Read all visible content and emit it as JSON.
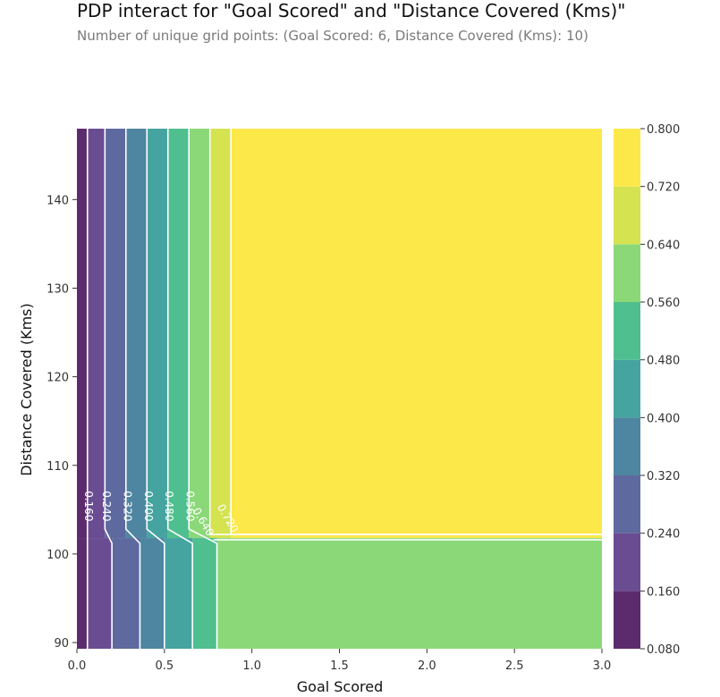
{
  "chart_data": {
    "type": "heatmap",
    "title": "PDP interact for \"Goal Scored\" and \"Distance Covered (Kms)\"",
    "subtitle": "Number of unique grid points: (Goal Scored: 6, Distance Covered (Kms): 10)",
    "xlabel": "Goal Scored",
    "ylabel": "Distance Covered (Kms)",
    "xlim": [
      0.0,
      3.0
    ],
    "ylim": [
      89.3,
      148.0
    ],
    "xticks": [
      0.0,
      0.5,
      1.0,
      1.5,
      2.0,
      2.5,
      3.0
    ],
    "xtick_labels": [
      "0.0",
      "0.5",
      "1.0",
      "1.5",
      "2.0",
      "2.5",
      "3.0"
    ],
    "yticks": [
      90,
      100,
      110,
      120,
      130,
      140
    ],
    "ytick_labels": [
      "90",
      "100",
      "110",
      "120",
      "130",
      "140"
    ],
    "y_break": 101.8,
    "upper_region": {
      "bands": [
        {
          "x_from": 0.0,
          "x_to": 0.06,
          "level": "0.080-0.160",
          "color": "#5c2b6e"
        },
        {
          "x_from": 0.06,
          "x_to": 0.16,
          "level": "0.160-0.240",
          "color": "#6a4c93"
        },
        {
          "x_from": 0.16,
          "x_to": 0.28,
          "level": "0.240-0.320",
          "color": "#5e699f"
        },
        {
          "x_from": 0.28,
          "x_to": 0.4,
          "level": "0.320-0.400",
          "color": "#4e85a0"
        },
        {
          "x_from": 0.4,
          "x_to": 0.52,
          "level": "0.400-0.480",
          "color": "#45a3a0"
        },
        {
          "x_from": 0.52,
          "x_to": 0.64,
          "level": "0.480-0.560",
          "color": "#4fbf8f"
        },
        {
          "x_from": 0.64,
          "x_to": 0.76,
          "level": "0.560-0.640",
          "color": "#8bd879"
        },
        {
          "x_from": 0.76,
          "x_to": 0.88,
          "level": "0.640-0.720",
          "color": "#d5e350"
        },
        {
          "x_from": 0.88,
          "x_to": 3.0,
          "level": "0.720-0.800",
          "color": "#fde84a"
        }
      ]
    },
    "lower_region": {
      "bands": [
        {
          "x_from": 0.0,
          "x_to": 0.06,
          "level": "0.080-0.160",
          "color": "#5c2b6e"
        },
        {
          "x_from": 0.06,
          "x_to": 0.2,
          "level": "0.160-0.240",
          "color": "#6a4c93"
        },
        {
          "x_from": 0.2,
          "x_to": 0.36,
          "level": "0.240-0.320",
          "color": "#5e699f"
        },
        {
          "x_from": 0.36,
          "x_to": 0.5,
          "level": "0.320-0.400",
          "color": "#4e85a0"
        },
        {
          "x_from": 0.5,
          "x_to": 0.66,
          "level": "0.400-0.480",
          "color": "#45a3a0"
        },
        {
          "x_from": 0.66,
          "x_to": 0.8,
          "level": "0.480-0.560",
          "color": "#4fbf8f"
        },
        {
          "x_from": 0.8,
          "x_to": 3.0,
          "level": "0.560-0.640",
          "color": "#8bd879"
        }
      ]
    },
    "contour_labels": [
      "0.160",
      "0.240",
      "0.320",
      "0.400",
      "0.480",
      "0.560",
      "0.640",
      "0.720"
    ],
    "colorbar": {
      "ticks": [
        0.08,
        0.16,
        0.24,
        0.32,
        0.4,
        0.48,
        0.56,
        0.64,
        0.72,
        0.8
      ],
      "tick_labels": [
        "0.080",
        "0.160",
        "0.240",
        "0.320",
        "0.400",
        "0.480",
        "0.560",
        "0.640",
        "0.720",
        "0.800"
      ],
      "colors": [
        "#5c2b6e",
        "#6a4c93",
        "#5e699f",
        "#4e85a0",
        "#45a3a0",
        "#4fbf8f",
        "#8bd879",
        "#d5e350",
        "#fde84a"
      ]
    }
  }
}
